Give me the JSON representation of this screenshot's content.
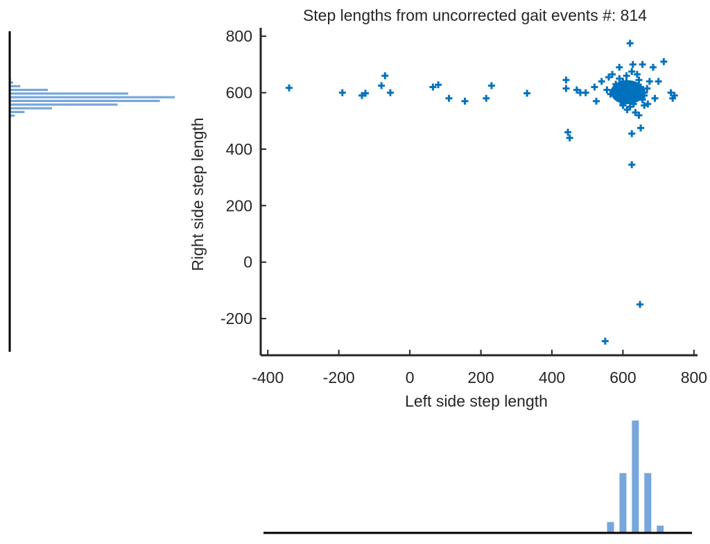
{
  "chart_data": {
    "type": "scatter",
    "title": "Step lengths from uncorrected gait events #: 814",
    "xlabel": "Left side step length",
    "ylabel": "Right side step length",
    "xlim": [
      -420,
      810
    ],
    "ylim": [
      -330,
      830
    ],
    "xticks": [
      -400,
      -200,
      0,
      200,
      400,
      600,
      800
    ],
    "yticks": [
      -200,
      0,
      200,
      400,
      600,
      800
    ],
    "xtick_labels": [
      "-400",
      "-200",
      "0",
      "200",
      "400",
      "600",
      "800"
    ],
    "ytick_labels": [
      "-200",
      "0",
      "200",
      "400",
      "600",
      "800"
    ],
    "marker": "plus",
    "colors": {
      "scatter": "#0072BD",
      "histogram": "#77A6DB",
      "axis": "#262626"
    },
    "points": [
      [
        -340,
        617
      ],
      [
        -190,
        600
      ],
      [
        -135,
        590
      ],
      [
        -125,
        598
      ],
      [
        -80,
        625
      ],
      [
        -70,
        660
      ],
      [
        -55,
        600
      ],
      [
        65,
        620
      ],
      [
        80,
        628
      ],
      [
        110,
        580
      ],
      [
        155,
        570
      ],
      [
        215,
        580
      ],
      [
        230,
        625
      ],
      [
        330,
        598
      ],
      [
        440,
        645
      ],
      [
        440,
        615
      ],
      [
        445,
        460
      ],
      [
        450,
        440
      ],
      [
        470,
        610
      ],
      [
        480,
        600
      ],
      [
        495,
        600
      ],
      [
        520,
        620
      ],
      [
        525,
        570
      ],
      [
        540,
        640
      ],
      [
        560,
        655
      ],
      [
        570,
        665
      ],
      [
        580,
        600
      ],
      [
        590,
        690
      ],
      [
        600,
        560
      ],
      [
        605,
        605
      ],
      [
        610,
        640
      ],
      [
        615,
        580
      ],
      [
        620,
        775
      ],
      [
        620,
        600
      ],
      [
        625,
        345
      ],
      [
        625,
        455
      ],
      [
        628,
        700
      ],
      [
        635,
        530
      ],
      [
        640,
        610
      ],
      [
        645,
        520
      ],
      [
        648,
        -150
      ],
      [
        650,
        475
      ],
      [
        655,
        700
      ],
      [
        660,
        600
      ],
      [
        670,
        560
      ],
      [
        675,
        640
      ],
      [
        685,
        690
      ],
      [
        690,
        580
      ],
      [
        700,
        640
      ],
      [
        715,
        710
      ],
      [
        735,
        600
      ],
      [
        740,
        580
      ],
      [
        745,
        590
      ],
      [
        550,
        -280
      ],
      [
        595,
        620
      ],
      [
        600,
        590
      ],
      [
        608,
        575
      ],
      [
        612,
        612
      ],
      [
        618,
        595
      ],
      [
        622,
        630
      ],
      [
        628,
        585
      ],
      [
        632,
        605
      ],
      [
        638,
        590
      ],
      [
        604,
        600
      ],
      [
        616,
        618
      ],
      [
        624,
        598
      ],
      [
        606,
        582
      ],
      [
        636,
        622
      ],
      [
        590,
        605
      ],
      [
        642,
        598
      ],
      [
        600,
        640
      ],
      [
        630,
        560
      ],
      [
        585,
        580
      ],
      [
        650,
        620
      ],
      [
        610,
        660
      ],
      [
        580,
        630
      ],
      [
        660,
        590
      ],
      [
        620,
        550
      ],
      [
        575,
        610
      ],
      [
        645,
        645
      ],
      [
        600,
        555
      ],
      [
        655,
        575
      ],
      [
        565,
        595
      ],
      [
        640,
        665
      ],
      [
        612,
        540
      ],
      [
        590,
        650
      ],
      [
        668,
        615
      ],
      [
        625,
        675
      ],
      [
        555,
        610
      ],
      [
        660,
        555
      ],
      [
        598,
        625
      ],
      [
        618,
        602
      ]
    ],
    "hist_y": {
      "orientation": "horizontal",
      "bin_width": 20,
      "bins": [
        {
          "y": 510,
          "count": 2
        },
        {
          "y": 530,
          "count": 12
        },
        {
          "y": 550,
          "count": 35
        },
        {
          "y": 570,
          "count": 100
        },
        {
          "y": 590,
          "count": 255
        },
        {
          "y": 610,
          "count": 355
        },
        {
          "y": 630,
          "count": 390
        },
        {
          "y": 650,
          "count": 280
        },
        {
          "y": 670,
          "count": 90
        },
        {
          "y": 690,
          "count": 25
        },
        {
          "y": 710,
          "count": 8
        },
        {
          "y": 730,
          "count": 3
        },
        {
          "y": 750,
          "count": 1
        }
      ]
    },
    "hist_x": {
      "orientation": "vertical",
      "bin_width": 35,
      "bins": [
        {
          "x": 530,
          "count": 5
        },
        {
          "x": 565,
          "count": 60
        },
        {
          "x": 600,
          "count": 330
        },
        {
          "x": 635,
          "count": 620
        },
        {
          "x": 670,
          "count": 330
        },
        {
          "x": 705,
          "count": 40
        }
      ]
    }
  }
}
